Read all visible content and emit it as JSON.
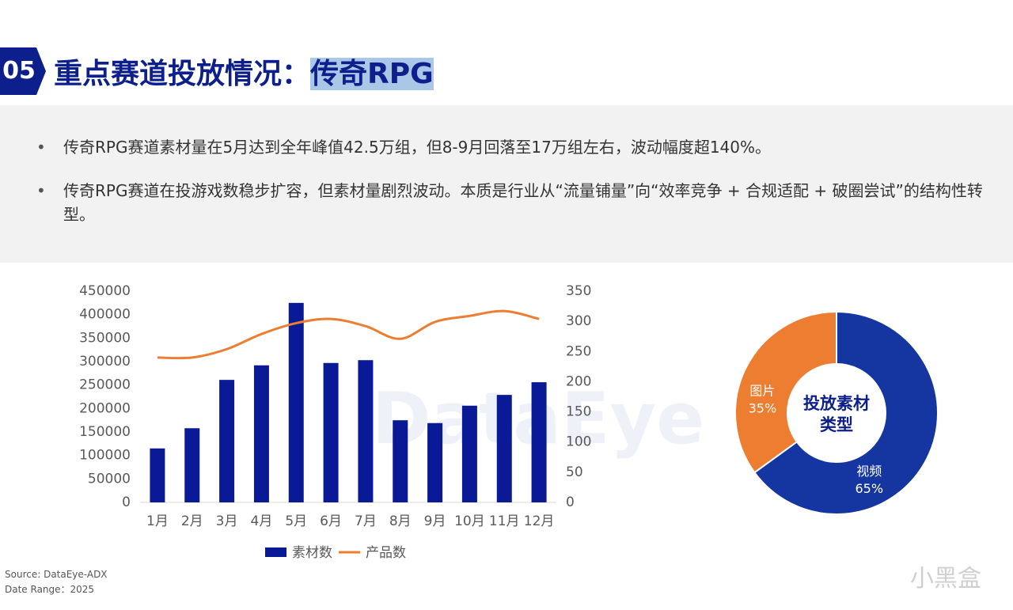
{
  "header": {
    "number": "05",
    "title": "重点赛道投放情况：",
    "highlight": "传奇RPG"
  },
  "bullets": [
    "传奇RPG赛道素材量在5月达到全年峰值42.5万组，但8-9月回落至17万组左右，波动幅度超140%。",
    "传奇RPG赛道在投游戏数稳步扩容，但素材量剧烈波动。本质是行业从“流量铺量”向“效率竞争 + 合规适配 + 破圈尝试”的结构性转型。"
  ],
  "footer": {
    "source": "Source: DataEye-ADX",
    "date_range": "Date Range：2025",
    "watermark": "DataEye",
    "brand": "小黑盒"
  },
  "chart_data": [
    {
      "type": "combo",
      "categories": [
        "1月",
        "2月",
        "3月",
        "4月",
        "5月",
        "6月",
        "7月",
        "8月",
        "9月",
        "10月",
        "11月",
        "12月"
      ],
      "series": [
        {
          "name": "素材数",
          "type": "bar",
          "color": "#0a1a96",
          "values": [
            115000,
            158000,
            261000,
            292000,
            425000,
            297000,
            303000,
            175000,
            169000,
            206000,
            229000,
            256000
          ]
        },
        {
          "name": "产品数",
          "type": "line",
          "color": "#ed7d31",
          "axis": "y2",
          "values": [
            240,
            240,
            254,
            279,
            297,
            304,
            292,
            271,
            299,
            309,
            317,
            304
          ]
        }
      ],
      "ylim": [
        0,
        450000
      ],
      "yticks": [
        0,
        50000,
        100000,
        150000,
        200000,
        250000,
        300000,
        350000,
        400000,
        450000
      ],
      "y2lim": [
        0,
        350
      ],
      "y2ticks": [
        0,
        50,
        100,
        150,
        200,
        250,
        300,
        350
      ],
      "legend": "bottom"
    },
    {
      "type": "donut",
      "center_label": "投放素材类型",
      "categories": [
        "视频",
        "图片"
      ],
      "values": [
        65,
        35
      ],
      "value_labels": [
        "65%",
        "35%"
      ],
      "colors": [
        "#1535a0",
        "#ed7d31"
      ]
    }
  ]
}
